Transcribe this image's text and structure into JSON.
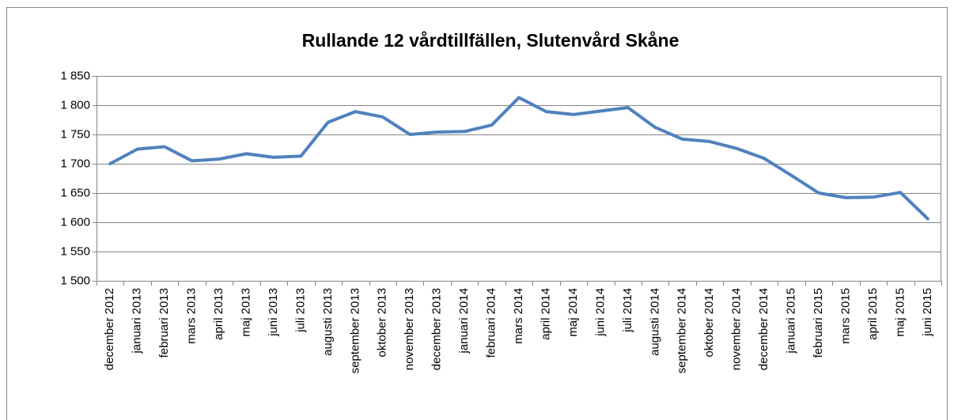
{
  "chart_data": {
    "type": "line",
    "title": "Rullande 12 vårdtillfällen, Slutenvård Skåne",
    "categories": [
      "december 2012",
      "januari 2013",
      "februari 2013",
      "mars 2013",
      "april 2013",
      "maj 2013",
      "juni 2013",
      "juli 2013",
      "augusti 2013",
      "september 2013",
      "oktober 2013",
      "november 2013",
      "december 2013",
      "januari 2014",
      "februari 2014",
      "mars 2014",
      "april 2014",
      "maj 2014",
      "juni 2014",
      "juli 2014",
      "augusti 2014",
      "september 2014",
      "oktober 2014",
      "november 2014",
      "december 2014",
      "januari 2015",
      "februari 2015",
      "mars 2015",
      "april 2015",
      "maj 2015",
      "juni 2015"
    ],
    "values": [
      1700,
      1725,
      1729,
      1705,
      1708,
      1717,
      1711,
      1713,
      1771,
      1789,
      1780,
      1750,
      1754,
      1755,
      1766,
      1813,
      1789,
      1784,
      1790,
      1796,
      1762,
      1742,
      1738,
      1726,
      1709,
      1680,
      1650,
      1642,
      1643,
      1651,
      1606
    ],
    "color": "#4f81bd",
    "ylim": [
      1500,
      1850
    ],
    "yticks": [
      {
        "value": 1500,
        "label": "1 500"
      },
      {
        "value": 1550,
        "label": "1 550"
      },
      {
        "value": 1600,
        "label": "1 600"
      },
      {
        "value": 1650,
        "label": "1 650"
      },
      {
        "value": 1700,
        "label": "1 700"
      },
      {
        "value": 1750,
        "label": "1 750"
      },
      {
        "value": 1800,
        "label": "1 800"
      },
      {
        "value": 1850,
        "label": "1 850"
      }
    ],
    "grid": true
  }
}
